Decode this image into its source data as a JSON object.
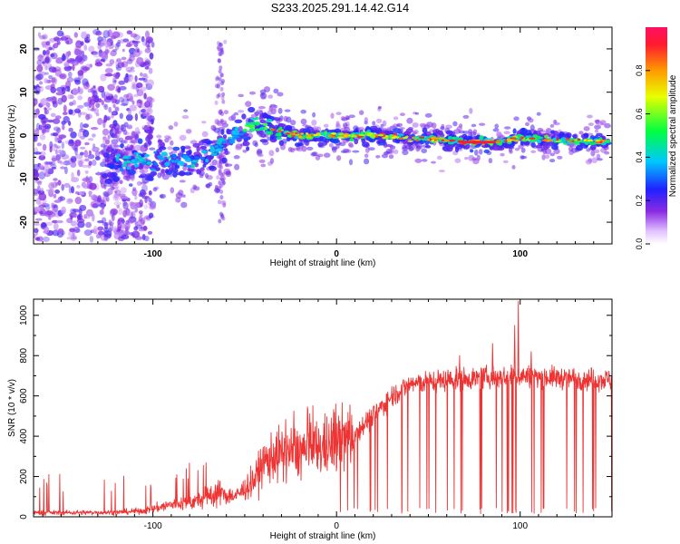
{
  "title": "S233.2025.291.14.42.G14",
  "chart_data": [
    {
      "type": "heatmap",
      "xlabel": "Height of straight line (km)",
      "ylabel": "Frequency (Hz)",
      "xlim": [
        -165,
        150
      ],
      "ylim": [
        -25,
        25
      ],
      "xticks": [
        -100,
        0,
        100
      ],
      "yticks": [
        20,
        10,
        0,
        -10,
        -20
      ],
      "colorbar": {
        "label": "Normalized spectral amplitude",
        "range": [
          0,
          1
        ],
        "ticks": [
          0.0,
          0.2,
          0.4,
          0.6,
          0.8
        ]
      },
      "ridge": {
        "x": [
          -125,
          -110,
          -95,
          -85,
          -75,
          -65,
          -55,
          -45,
          -38,
          -30,
          -20,
          -10,
          0,
          20,
          40,
          60,
          70,
          80,
          90,
          95,
          100,
          120,
          150
        ],
        "freq": [
          -6,
          -5.5,
          -6,
          -6,
          -5,
          -3,
          0,
          2,
          2,
          1,
          0,
          0,
          0,
          0,
          -0.5,
          -1,
          -1.5,
          -1.5,
          -1.5,
          -1,
          -0.5,
          -1,
          -1.5
        ]
      }
    },
    {
      "type": "line",
      "xlabel": "Height of straight line (km)",
      "ylabel": "SNR (10 * v/v)",
      "xlim": [
        -165,
        150
      ],
      "ylim": [
        0,
        1080
      ],
      "xticks": [
        -100,
        0,
        100
      ],
      "yticks": [
        0,
        200,
        400,
        600,
        800,
        1000
      ],
      "color": "#ee3333",
      "envelope": {
        "x": [
          -165,
          -120,
          -105,
          -90,
          -75,
          -65,
          -55,
          -45,
          -40,
          -35,
          -25,
          -15,
          -5,
          0,
          10,
          20,
          30,
          40,
          60,
          80,
          100,
          120,
          150
        ],
        "snr": [
          20,
          22,
          30,
          60,
          80,
          120,
          100,
          180,
          260,
          300,
          320,
          330,
          350,
          370,
          420,
          500,
          600,
          660,
          680,
          690,
          700,
          690,
          680
        ]
      },
      "spikes": [
        {
          "x": 99,
          "snr": 1070
        },
        {
          "x": 97,
          "snr": 950
        },
        {
          "x": 85,
          "snr": 860
        },
        {
          "x": 106,
          "snr": 820
        },
        {
          "x": 67,
          "snr": 800
        }
      ]
    }
  ]
}
